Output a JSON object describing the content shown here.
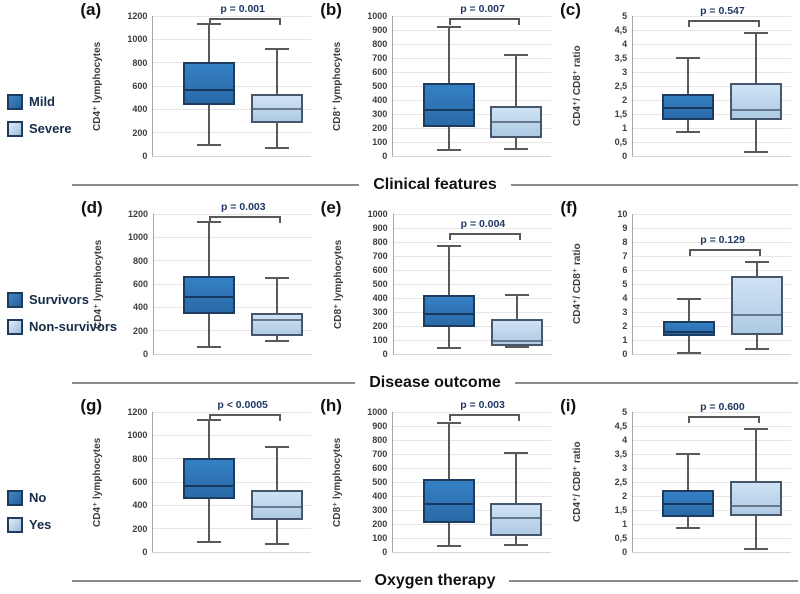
{
  "figure": {
    "rows": [
      {
        "title": "Clinical features",
        "legend": [
          {
            "label": "Mild",
            "style": "dark"
          },
          {
            "label": "Severe",
            "style": "light"
          }
        ]
      },
      {
        "title": "Disease outcome",
        "legend": [
          {
            "label": "Survivors",
            "style": "dark"
          },
          {
            "label": "Non-survivors",
            "style": "light"
          }
        ]
      },
      {
        "title": "Oxygen therapy",
        "legend": [
          {
            "label": "No",
            "style": "dark"
          },
          {
            "label": "Yes",
            "style": "light"
          }
        ]
      }
    ],
    "colors": {
      "dark_fill": "#2E75B6",
      "light_fill": "#BDD7EE",
      "dark_border": "#1E3C60",
      "light_border": "#46566B",
      "whisker": "#595959",
      "p_value_text": "#1F3864",
      "gridline": "#E6E6E6"
    }
  },
  "chart_data": [
    {
      "type": "boxplot",
      "panel_label": "(a)",
      "ylabel": "CD4⁺ lymphocytes",
      "p_label": "p = 0.001",
      "ymin": 0,
      "ymax": 1200,
      "yticks": [
        "1200",
        "1000",
        "800",
        "600",
        "400",
        "200",
        "0"
      ],
      "groups": [
        "Mild",
        "Severe"
      ],
      "series": [
        {
          "name": "Mild",
          "style": "dark",
          "whisker_low": 95,
          "q1": 440,
          "median": 565,
          "q3": 810,
          "whisker_high": 1135
        },
        {
          "name": "Severe",
          "style": "light",
          "whisker_low": 65,
          "q1": 285,
          "median": 400,
          "q3": 535,
          "whisker_high": 920
        }
      ]
    },
    {
      "type": "boxplot",
      "panel_label": "(b)",
      "ylabel": "CD8⁺ lymphocytes",
      "p_label": "p = 0.007",
      "ymin": 0,
      "ymax": 1000,
      "yticks": [
        "1000",
        "900",
        "800",
        "700",
        "600",
        "500",
        "400",
        "300",
        "200",
        "100",
        "0"
      ],
      "groups": [
        "Mild",
        "Severe"
      ],
      "series": [
        {
          "name": "Mild",
          "style": "dark",
          "whisker_low": 40,
          "q1": 205,
          "median": 330,
          "q3": 520,
          "whisker_high": 920
        },
        {
          "name": "Severe",
          "style": "light",
          "whisker_low": 50,
          "q1": 125,
          "median": 240,
          "q3": 360,
          "whisker_high": 720
        }
      ]
    },
    {
      "type": "boxplot",
      "panel_label": "(c)",
      "ylabel": "CD4⁺/ CD8⁺ ratio",
      "p_label": "p = 0.547",
      "ymin": 0,
      "ymax": 5,
      "yticks": [
        "5",
        "4,5",
        "4",
        "3,5",
        "3",
        "2,5",
        "2",
        "1,5",
        "1",
        "0,5",
        "0"
      ],
      "groups": [
        "Mild",
        "Severe"
      ],
      "series": [
        {
          "name": "Mild",
          "style": "dark",
          "whisker_low": 0.85,
          "q1": 1.3,
          "median": 1.7,
          "q3": 2.2,
          "whisker_high": 3.5
        },
        {
          "name": "Severe",
          "style": "light",
          "whisker_low": 0.15,
          "q1": 1.3,
          "median": 1.65,
          "q3": 2.6,
          "whisker_high": 4.4
        }
      ]
    },
    {
      "type": "boxplot",
      "panel_label": "(d)",
      "ylabel": "CD4⁺ lymphocytes",
      "p_label": "p = 0.003",
      "ymin": 0,
      "ymax": 1200,
      "yticks": [
        "1200",
        "1000",
        "800",
        "600",
        "400",
        "200",
        "0"
      ],
      "groups": [
        "Survivors",
        "Non-survivors"
      ],
      "series": [
        {
          "name": "Survivors",
          "style": "dark",
          "whisker_low": 60,
          "q1": 340,
          "median": 485,
          "q3": 665,
          "whisker_high": 1135
        },
        {
          "name": "Non-survivors",
          "style": "light",
          "whisker_low": 115,
          "q1": 150,
          "median": 290,
          "q3": 350,
          "whisker_high": 655
        }
      ]
    },
    {
      "type": "boxplot",
      "panel_label": "(e)",
      "ylabel": "CD8⁺ lymphocytes",
      "p_label": "p = 0.004",
      "ymin": 0,
      "ymax": 1000,
      "yticks": [
        "1000",
        "900",
        "800",
        "700",
        "600",
        "500",
        "400",
        "300",
        "200",
        "100",
        "0"
      ],
      "groups": [
        "Survivors",
        "Non-survivors"
      ],
      "series": [
        {
          "name": "Survivors",
          "style": "dark",
          "whisker_low": 40,
          "q1": 190,
          "median": 285,
          "q3": 420,
          "whisker_high": 770
        },
        {
          "name": "Non-survivors",
          "style": "light",
          "whisker_low": 50,
          "q1": 55,
          "median": 95,
          "q3": 250,
          "whisker_high": 425
        }
      ]
    },
    {
      "type": "boxplot",
      "panel_label": "(f)",
      "ylabel": "CD4⁺/ CD8⁺ ratio",
      "p_label": "p = 0.129",
      "ymin": 0,
      "ymax": 10,
      "yticks": [
        "10",
        "9",
        "8",
        "7",
        "6",
        "5",
        "4",
        "3",
        "2",
        "1",
        "0"
      ],
      "groups": [
        "Survivors",
        "Non-survivors"
      ],
      "series": [
        {
          "name": "Survivors",
          "style": "dark",
          "whisker_low": 0.1,
          "q1": 1.3,
          "median": 1.6,
          "q3": 2.35,
          "whisker_high": 3.95
        },
        {
          "name": "Non-survivors",
          "style": "light",
          "whisker_low": 0.35,
          "q1": 1.35,
          "median": 2.8,
          "q3": 5.6,
          "whisker_high": 6.6
        }
      ]
    },
    {
      "type": "boxplot",
      "panel_label": "(g)",
      "ylabel": "CD4⁺ lymphocytes",
      "p_label": "p < 0.0005",
      "ymin": 0,
      "ymax": 1200,
      "yticks": [
        "1200",
        "1000",
        "800",
        "600",
        "400",
        "200",
        "0"
      ],
      "groups": [
        "No",
        "Yes"
      ],
      "series": [
        {
          "name": "No",
          "style": "dark",
          "whisker_low": 90,
          "q1": 455,
          "median": 565,
          "q3": 810,
          "whisker_high": 1135
        },
        {
          "name": "Yes",
          "style": "light",
          "whisker_low": 65,
          "q1": 275,
          "median": 390,
          "q3": 530,
          "whisker_high": 900
        }
      ]
    },
    {
      "type": "boxplot",
      "panel_label": "(h)",
      "ylabel": "CD8⁺ lymphocytes",
      "p_label": "p = 0.003",
      "ymin": 0,
      "ymax": 1000,
      "yticks": [
        "1000",
        "900",
        "800",
        "700",
        "600",
        "500",
        "400",
        "300",
        "200",
        "100",
        "0"
      ],
      "groups": [
        "No",
        "Yes"
      ],
      "series": [
        {
          "name": "No",
          "style": "dark",
          "whisker_low": 40,
          "q1": 210,
          "median": 345,
          "q3": 525,
          "whisker_high": 925
        },
        {
          "name": "Yes",
          "style": "light",
          "whisker_low": 50,
          "q1": 115,
          "median": 240,
          "q3": 350,
          "whisker_high": 705
        }
      ]
    },
    {
      "type": "boxplot",
      "panel_label": "(i)",
      "ylabel": "CD4⁺/ CD8⁺ ratio",
      "p_label": "p = 0.600",
      "ymin": 0,
      "ymax": 5,
      "yticks": [
        "5",
        "4,5",
        "4",
        "3,5",
        "3",
        "2,5",
        "2",
        "1,5",
        "1",
        "0,5",
        "0"
      ],
      "groups": [
        "No",
        "Yes"
      ],
      "series": [
        {
          "name": "No",
          "style": "dark",
          "whisker_low": 0.85,
          "q1": 1.25,
          "median": 1.7,
          "q3": 2.2,
          "whisker_high": 3.5
        },
        {
          "name": "Yes",
          "style": "light",
          "whisker_low": 0.1,
          "q1": 1.3,
          "median": 1.65,
          "q3": 2.55,
          "whisker_high": 4.4
        }
      ]
    }
  ]
}
